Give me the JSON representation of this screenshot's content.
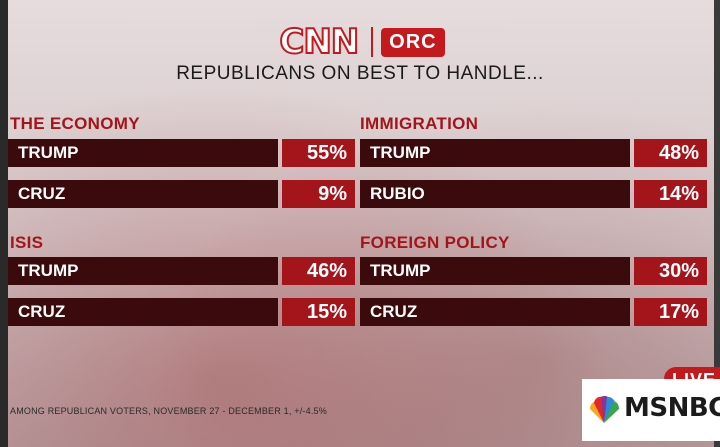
{
  "header": {
    "brand_left": "CNN",
    "brand_right": "ORC",
    "subtitle": "REPUBLICANS ON BEST TO HANDLE..."
  },
  "chart_data": {
    "type": "table",
    "title": "REPUBLICANS ON BEST TO HANDLE...",
    "groups": [
      {
        "title": "THE ECONOMY",
        "rows": [
          {
            "name": "TRUMP",
            "value": 55,
            "label": "55%"
          },
          {
            "name": "CRUZ",
            "value": 9,
            "label": "9%"
          }
        ]
      },
      {
        "title": "IMMIGRATION",
        "rows": [
          {
            "name": "TRUMP",
            "value": 48,
            "label": "48%"
          },
          {
            "name": "RUBIO",
            "value": 14,
            "label": "14%"
          }
        ]
      },
      {
        "title": "ISIS",
        "rows": [
          {
            "name": "TRUMP",
            "value": 46,
            "label": "46%"
          },
          {
            "name": "CRUZ",
            "value": 15,
            "label": "15%"
          }
        ]
      },
      {
        "title": "FOREIGN POLICY",
        "rows": [
          {
            "name": "TRUMP",
            "value": 30,
            "label": "30%"
          },
          {
            "name": "CRUZ",
            "value": 17,
            "label": "17%"
          }
        ]
      }
    ]
  },
  "footnote": "AMONG REPUBLICAN VOTERS, NOVEMBER 27 - DECEMBER 1, +/-4.5%",
  "network": {
    "live_label": "LIVE",
    "logo_text": "MSNBC"
  },
  "colors": {
    "name_bar": "#3b0a0c",
    "value_bar": "#a3151b",
    "group_title": "#a3151b",
    "cnn_red": "#c41a1e"
  }
}
